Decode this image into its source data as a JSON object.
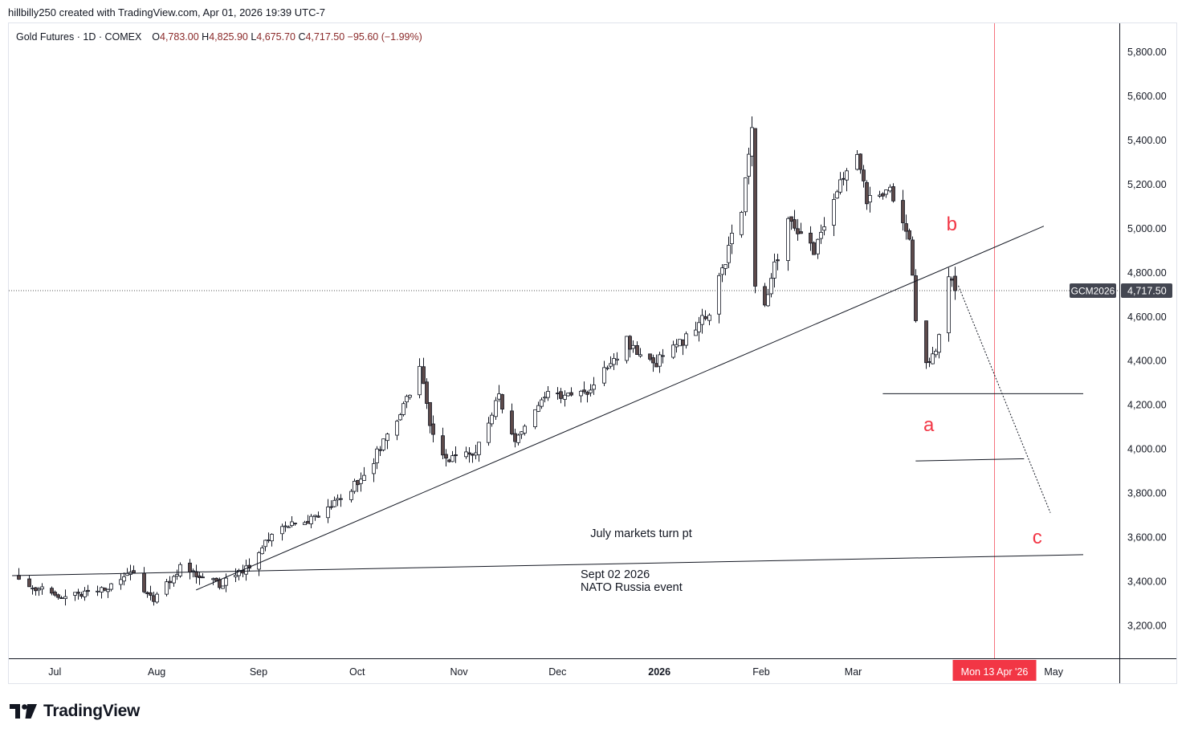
{
  "attribution": "hillbilly250 created with TradingView.com, Apr 01, 2026 19:39 UTC-7",
  "legend": {
    "symbol": "Gold Futures · 1D · COMEX",
    "open_label": "O",
    "open": "4,783.00",
    "high_label": "H",
    "high": "4,825.90",
    "low_label": "L",
    "low": "4,675.70",
    "close_label": "C",
    "close": "4,717.50",
    "change": "−95.60 (−1.99%)"
  },
  "price_badge": {
    "ticker": "GCM2026",
    "price": "4,717.50"
  },
  "date_badge": "Mon 13 Apr '26",
  "logo_text": "TradingView",
  "colors": {
    "up": "#ffffff",
    "down": "#5d4a4a",
    "accent": "#f23645",
    "line": "#131722"
  },
  "chart_data": {
    "type": "candlestick",
    "ylim": [
      3050,
      5930
    ],
    "yticks": [
      "5,800.00",
      "5,600.00",
      "5,400.00",
      "5,200.00",
      "5,000.00",
      "4,800.00",
      "4,600.00",
      "4,400.00",
      "4,200.00",
      "4,000.00",
      "3,800.00",
      "3,600.00",
      "3,400.00",
      "3,200.00"
    ],
    "ytick_values": [
      5800,
      5600,
      5400,
      5200,
      5000,
      4800,
      4600,
      4400,
      4200,
      4000,
      3800,
      3600,
      3400,
      3200
    ],
    "xticks": [
      {
        "label": "Jul",
        "date": "2025-07-01",
        "bold": false
      },
      {
        "label": "Aug",
        "date": "2025-08-01",
        "bold": false
      },
      {
        "label": "Sep",
        "date": "2025-09-01",
        "bold": false
      },
      {
        "label": "Oct",
        "date": "2025-10-01",
        "bold": false
      },
      {
        "label": "Nov",
        "date": "2025-11-01",
        "bold": false
      },
      {
        "label": "Dec",
        "date": "2025-12-01",
        "bold": false
      },
      {
        "label": "2026",
        "date": "2026-01-01",
        "bold": true
      },
      {
        "label": "Feb",
        "date": "2026-02-01",
        "bold": false
      },
      {
        "label": "Mar",
        "date": "2026-03-01",
        "bold": false
      },
      {
        "label": "May",
        "date": "2026-05-01",
        "bold": false
      }
    ],
    "anchors": [
      [
        "2025-06-20",
        3420
      ],
      [
        "2025-06-30",
        3330
      ],
      [
        "2025-07-15",
        3360
      ],
      [
        "2025-07-24",
        3440
      ],
      [
        "2025-07-31",
        3310
      ],
      [
        "2025-08-08",
        3460
      ],
      [
        "2025-08-20",
        3380
      ],
      [
        "2025-08-29",
        3460
      ],
      [
        "2025-09-05",
        3620
      ],
      [
        "2025-09-19",
        3690
      ],
      [
        "2025-10-03",
        3880
      ],
      [
        "2025-10-14",
        4150
      ],
      [
        "2025-10-20",
        4380
      ],
      [
        "2025-10-23",
        4120
      ],
      [
        "2025-10-28",
        3960
      ],
      [
        "2025-11-05",
        3970
      ],
      [
        "2025-11-13",
        4230
      ],
      [
        "2025-11-18",
        4050
      ],
      [
        "2025-11-28",
        4240
      ],
      [
        "2025-12-10",
        4250
      ],
      [
        "2025-12-22",
        4490
      ],
      [
        "2025-12-30",
        4380
      ],
      [
        "2026-01-08",
        4490
      ],
      [
        "2026-01-16",
        4620
      ],
      [
        "2026-01-26",
        5100
      ],
      [
        "2026-01-29",
        5450
      ],
      [
        "2026-01-30",
        4750
      ],
      [
        "2026-02-02",
        4650
      ],
      [
        "2026-02-09",
        5050
      ],
      [
        "2026-02-17",
        4900
      ],
      [
        "2026-02-26",
        5230
      ],
      [
        "2026-03-02",
        5350
      ],
      [
        "2026-03-05",
        5140
      ],
      [
        "2026-03-12",
        5170
      ],
      [
        "2026-03-18",
        4960
      ],
      [
        "2026-03-20",
        4600
      ],
      [
        "2026-03-23",
        4380
      ],
      [
        "2026-03-26",
        4430
      ],
      [
        "2026-03-30",
        4800
      ],
      [
        "2026-04-01",
        4717.5
      ]
    ],
    "last_candle": {
      "date": "2026-04-01",
      "open": 4783.0,
      "high": 4825.9,
      "low": 4675.7,
      "close": 4717.5
    },
    "annotations": [
      {
        "text": "a",
        "date": "2026-03-24",
        "price": 4080,
        "color": "#f23645"
      },
      {
        "text": "b",
        "date": "2026-03-31",
        "price": 4990,
        "color": "#f23645"
      },
      {
        "text": "c",
        "date": "2026-04-26",
        "price": 3570,
        "color": "#f23645"
      },
      {
        "text": "July markets turn pt",
        "date": "2025-12-11",
        "price": 3600,
        "color": "#131722"
      },
      {
        "text": "Sept 02 2026",
        "date": "2025-12-08",
        "price": 3415,
        "color": "#131722"
      },
      {
        "text": "NATO Russia event",
        "date": "2025-12-08",
        "price": 3355,
        "color": "#131722"
      }
    ],
    "lines": [
      {
        "kind": "solid",
        "from": [
          "2025-08-13",
          3360
        ],
        "to": [
          "2026-04-28",
          5010
        ]
      },
      {
        "kind": "solid",
        "from": [
          "2025-06-18",
          3425
        ],
        "to": [
          "2026-05-10",
          3520
        ]
      },
      {
        "kind": "solid",
        "from": [
          "2026-03-10",
          4250
        ],
        "to": [
          "2026-05-10",
          4250
        ]
      },
      {
        "kind": "solid",
        "from": [
          "2026-03-20",
          3945
        ],
        "to": [
          "2026-04-22",
          3955
        ]
      },
      {
        "kind": "dotted",
        "from": [
          "2026-04-02",
          4740
        ],
        "to": [
          "2026-04-30",
          3710
        ]
      }
    ],
    "vline_date": "2026-04-13",
    "last_price": 4717.5
  }
}
